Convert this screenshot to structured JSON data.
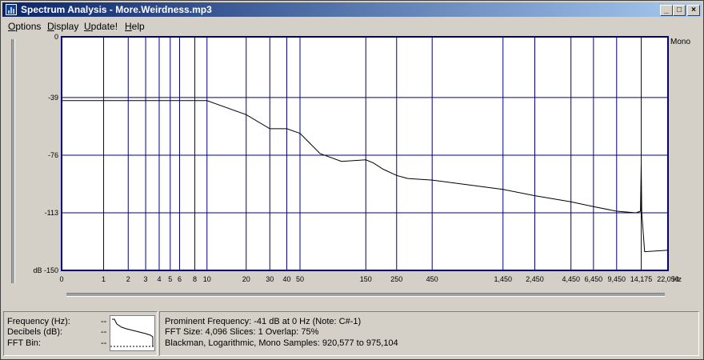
{
  "window": {
    "title": "Spectrum Analysis - More.Weirdness.mp3",
    "minimize_glyph": "_",
    "maximize_glyph": "□",
    "close_glyph": "×"
  },
  "menu": {
    "items": [
      {
        "label": "Options",
        "underline": "O",
        "rest": "ptions"
      },
      {
        "label": "Display",
        "underline": "D",
        "rest": "isplay"
      },
      {
        "label": "Update!",
        "underline": "U",
        "rest": "pdate!"
      },
      {
        "label": "Help",
        "underline": "H",
        "rest": "elp"
      }
    ]
  },
  "chart_data": {
    "type": "line",
    "channel_label": "Mono",
    "x_unit": "Hz",
    "y_unit": "dB",
    "y_ticks": [
      0,
      -39,
      -76,
      -113,
      -150
    ],
    "y_tick_labels": [
      "0",
      "-39",
      "-76",
      "-113",
      "dB -150"
    ],
    "x_ticks": [
      0,
      1,
      2,
      3,
      4,
      5,
      6,
      8,
      10,
      20,
      30,
      40,
      50,
      150,
      250,
      450,
      1450,
      2450,
      4450,
      6450,
      9450,
      14175,
      22050
    ],
    "x_tick_labels": [
      "0",
      "1",
      "2",
      "3",
      "4",
      "5",
      "6",
      "8",
      "10",
      "20",
      "30",
      "40",
      "50",
      "150",
      "250",
      "450",
      "1,450",
      "2,450",
      "4,450",
      "6,450",
      "9,450",
      "14,175",
      "22,050"
    ],
    "ylim": [
      -150,
      0
    ],
    "grid": true,
    "colors": {
      "plot_bg": "#ffffff",
      "grid": "#000080",
      "trace": "#000000"
    },
    "series": [
      {
        "values_x": [
          0,
          10,
          20,
          30,
          40,
          50,
          70,
          100,
          150,
          170,
          200,
          250,
          300,
          450,
          1450,
          2450,
          4450,
          6450,
          9450,
          13000,
          14000,
          14175,
          14300,
          15000,
          22050
        ],
        "values_y": [
          -41,
          -41,
          -50,
          -59,
          -59,
          -62,
          -75,
          -80,
          -79,
          -81,
          -85,
          -89,
          -91,
          -92,
          -98,
          -102,
          -106,
          -109,
          -112,
          -113,
          -112,
          -82,
          -113,
          -138,
          -137
        ]
      }
    ]
  },
  "status": {
    "frequency_label": "Frequency (Hz):",
    "frequency_value": "--",
    "decibels_label": "Decibels (dB):",
    "decibels_value": "--",
    "fft_bin_label": "FFT Bin:",
    "fft_bin_value": "--",
    "prominent": "Prominent Frequency: -41 dB at 0 Hz (Note: C#-1)",
    "fft_info": "FFT Size: 4,096  Slices: 1  Overlap: 75%",
    "window_info": "Blackman, Logarithmic, Mono  Samples: 920,577 to 975,104"
  }
}
